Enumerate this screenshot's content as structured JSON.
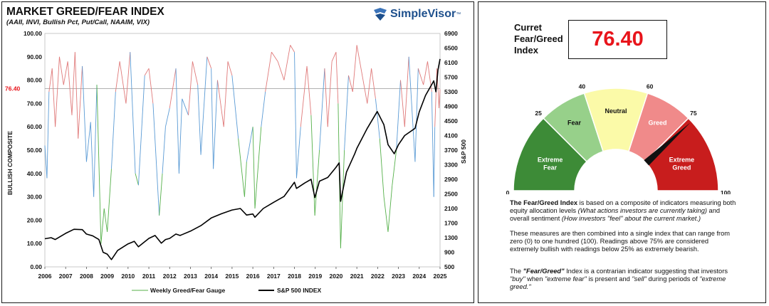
{
  "chart_data": {
    "type": "line",
    "title": "MARKET GREED/FEAR INDEX",
    "subtitle": "(AAII, INVI, Bullish Pct, Put/Call, NAAIM, VIX)",
    "ylabel": "BULLISH COMPOSITE",
    "y2label": "S&P 500",
    "ylim": [
      0,
      100
    ],
    "y2lim": [
      500,
      6900
    ],
    "xlim": [
      2006,
      2025
    ],
    "left_ticks": [
      "0.00",
      "10.00",
      "20.00",
      "30.00",
      "40.00",
      "50.00",
      "60.00",
      "70.00",
      "80.00",
      "90.00",
      "100.00"
    ],
    "right_ticks": [
      "500",
      "900",
      "1300",
      "1700",
      "2100",
      "2500",
      "2900",
      "3300",
      "3700",
      "4100",
      "4500",
      "4900",
      "5300",
      "5700",
      "6100",
      "6500",
      "6900"
    ],
    "x_ticks": [
      "2006",
      "2007",
      "2008",
      "2009",
      "2010",
      "2011",
      "2012",
      "2013",
      "2014",
      "2015",
      "2016",
      "2017",
      "2018",
      "2019",
      "2020",
      "2021",
      "2022",
      "2023",
      "2024",
      "2025"
    ],
    "current_line": {
      "value": 76.4,
      "label": "76.40"
    },
    "legend": [
      "Weekly Greed/Fear Gauge",
      "S&P 500 INDEX"
    ],
    "series": [
      {
        "name": "S&P 500 INDEX",
        "x": [
          2006.0,
          2006.3,
          2006.5,
          2007.0,
          2007.4,
          2007.8,
          2008.0,
          2008.3,
          2008.6,
          2008.8,
          2009.0,
          2009.2,
          2009.5,
          2010.0,
          2010.3,
          2010.5,
          2011.0,
          2011.3,
          2011.6,
          2011.8,
          2012.0,
          2012.3,
          2012.5,
          2013.0,
          2013.5,
          2014.0,
          2014.5,
          2015.0,
          2015.4,
          2015.7,
          2016.0,
          2016.1,
          2016.5,
          2017.0,
          2017.5,
          2018.0,
          2018.1,
          2018.5,
          2018.8,
          2018.98,
          2019.2,
          2019.6,
          2020.0,
          2020.15,
          2020.22,
          2020.5,
          2020.9,
          2021.0,
          2021.5,
          2021.98,
          2022.3,
          2022.5,
          2022.8,
          2023.0,
          2023.3,
          2023.8,
          2024.0,
          2024.3,
          2024.6,
          2024.7,
          2024.8,
          2024.9,
          2025.0
        ],
        "values": [
          1270,
          1300,
          1250,
          1420,
          1530,
          1520,
          1400,
          1350,
          1250,
          900,
          850,
          700,
          950,
          1130,
          1200,
          1050,
          1280,
          1360,
          1150,
          1250,
          1280,
          1400,
          1360,
          1480,
          1630,
          1840,
          1960,
          2060,
          2100,
          1920,
          1950,
          1860,
          2100,
          2270,
          2430,
          2820,
          2650,
          2800,
          2900,
          2400,
          2850,
          2950,
          3230,
          3350,
          2300,
          3100,
          3600,
          3750,
          4300,
          4760,
          4400,
          3850,
          3600,
          3850,
          4100,
          4300,
          4750,
          5200,
          5500,
          5600,
          5300,
          5900,
          6200
        ]
      },
      {
        "name": "Weekly Greed/Fear Gauge",
        "x": [
          2006.0,
          2006.1,
          2006.2,
          2006.35,
          2006.5,
          2006.7,
          2006.9,
          2007.1,
          2007.3,
          2007.45,
          2007.6,
          2007.8,
          2008.0,
          2008.2,
          2008.35,
          2008.5,
          2008.7,
          2008.85,
          2009.0,
          2009.2,
          2009.4,
          2009.6,
          2009.9,
          2010.1,
          2010.35,
          2010.5,
          2010.8,
          2011.0,
          2011.2,
          2011.5,
          2011.65,
          2011.8,
          2012.0,
          2012.3,
          2012.45,
          2012.6,
          2012.9,
          2013.1,
          2013.35,
          2013.5,
          2013.8,
          2014.0,
          2014.1,
          2014.3,
          2014.6,
          2014.8,
          2015.0,
          2015.3,
          2015.6,
          2015.7,
          2016.0,
          2016.1,
          2016.4,
          2016.6,
          2016.9,
          2017.2,
          2017.5,
          2017.8,
          2018.0,
          2018.1,
          2018.3,
          2018.6,
          2018.8,
          2018.98,
          2019.2,
          2019.45,
          2019.6,
          2019.8,
          2020.0,
          2020.1,
          2020.22,
          2020.4,
          2020.6,
          2020.8,
          2021.0,
          2021.3,
          2021.5,
          2021.7,
          2021.9,
          2022.1,
          2022.3,
          2022.5,
          2022.7,
          2022.9,
          2023.1,
          2023.3,
          2023.5,
          2023.8,
          2023.95,
          2024.2,
          2024.4,
          2024.6,
          2024.7,
          2024.75,
          2024.85,
          2024.95,
          2025.0
        ],
        "values": [
          52,
          38,
          75,
          85,
          60,
          90,
          78,
          88,
          65,
          92,
          55,
          86,
          45,
          62,
          30,
          78,
          10,
          25,
          15,
          42,
          75,
          88,
          70,
          92,
          40,
          35,
          82,
          85,
          70,
          22,
          40,
          60,
          68,
          85,
          40,
          72,
          65,
          88,
          78,
          48,
          90,
          85,
          42,
          80,
          60,
          88,
          82,
          55,
          30,
          45,
          60,
          25,
          60,
          75,
          92,
          88,
          80,
          95,
          92,
          38,
          60,
          86,
          65,
          22,
          50,
          85,
          60,
          88,
          92,
          70,
          8,
          50,
          82,
          75,
          95,
          80,
          70,
          85,
          72,
          55,
          30,
          15,
          35,
          50,
          80,
          60,
          90,
          45,
          85,
          78,
          88,
          75,
          30,
          60,
          85,
          68,
          76
        ]
      }
    ]
  },
  "current": {
    "label_line1": "Curret",
    "label_line2": "Fear/Greed",
    "label_line3": "Index",
    "value": "76.40",
    "value_color": "#e8141b"
  },
  "gauge": {
    "segments": [
      {
        "name": "Extreme Fear",
        "label_line1": "Extreme",
        "label_line2": "Fear",
        "from": 0,
        "to": 25,
        "color": "#3d8b37"
      },
      {
        "name": "Fear",
        "label_line1": "Fear",
        "label_line2": "",
        "from": 25,
        "to": 40,
        "color": "#97d08a"
      },
      {
        "name": "Neutral",
        "label_line1": "Neutral",
        "label_line2": "",
        "from": 40,
        "to": 60,
        "color": "#fbfaa8"
      },
      {
        "name": "Greed",
        "label_line1": "Greed",
        "label_line2": "",
        "from": 60,
        "to": 75,
        "color": "#f08a8a"
      },
      {
        "name": "Extreme Greed",
        "label_line1": "Extreme",
        "label_line2": "Greed",
        "from": 75,
        "to": 100,
        "color": "#c81d1d"
      }
    ],
    "ticks": [
      "0",
      "25",
      "40",
      "60",
      "75",
      "100"
    ],
    "needle_value": 76.4
  },
  "description": {
    "p1_bold": "The Fear/Greed Index",
    "p1_a": " is based on a composite of indicators measuring both equity allocation levels ",
    "p1_i1": "(What actions investors are currently taking)",
    "p1_b": " and overall sentiment ",
    "p1_i2": "(How investors \"feel\" about the current market.)",
    "p2": "These measures are then combined into a single index that can range from zero (0) to one hundred (100). Readings above 75% are considered extremely bullish with readings below 25% as extremely bearish.",
    "p3_a": "The ",
    "p3_bi": "\"Fear/Greed\"",
    "p3_b": " Index is a contrarian indicator suggesting that investors ",
    "p3_i1": "\"buy\"",
    "p3_c": " when ",
    "p3_i2": "\"extreme fear\"",
    "p3_d": " is present and ",
    "p3_i3": "\"sell\"",
    "p3_e": " during periods of ",
    "p3_i4": "\"extreme greed.\""
  },
  "brand": {
    "name": "SimpleVisor",
    "tm": "™"
  },
  "colors": {
    "greed_red": "#e07a7a",
    "neutral_blue": "#5b9bd5",
    "fear_green": "#55b04a",
    "sp500": "#000000"
  }
}
